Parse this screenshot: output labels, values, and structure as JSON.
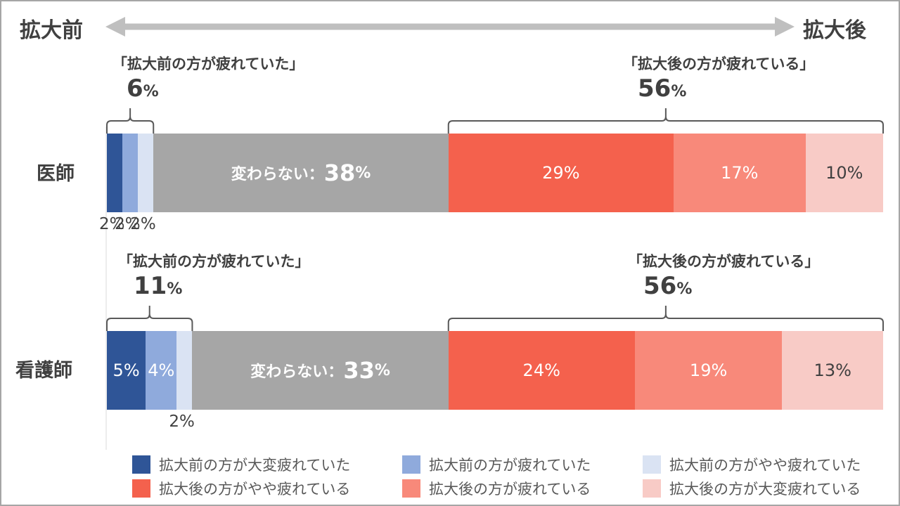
{
  "header": {
    "left_label": "拡大前",
    "right_label": "拡大後"
  },
  "colors": {
    "arrow": "#bfbfbf",
    "before_very": "#2f5597",
    "before_tired": "#8faadc",
    "before_slight": "#dae3f3",
    "no_change": "#a6a6a6",
    "after_slight": "#f4614d",
    "after_tired": "#f8897a",
    "after_very": "#f8cbc6",
    "bracket": "#595959",
    "axis": "#d9d9d9"
  },
  "chart_data": {
    "type": "bar",
    "orientation": "horizontal",
    "stacked": true,
    "categories": [
      "医師",
      "看護師"
    ],
    "series": [
      {
        "name": "拡大前の方が大変疲れていた",
        "values": [
          2,
          5
        ]
      },
      {
        "name": "拡大前の方が疲れていた",
        "values": [
          2,
          4
        ]
      },
      {
        "name": "拡大前の方がやや疲れていた",
        "values": [
          2,
          2
        ]
      },
      {
        "name": "変わらない",
        "values": [
          38,
          33
        ]
      },
      {
        "name": "拡大後の方がやや疲れている",
        "values": [
          29,
          24
        ]
      },
      {
        "name": "拡大後の方が疲れている",
        "values": [
          17,
          19
        ]
      },
      {
        "name": "拡大後の方が大変疲れている",
        "values": [
          10,
          13
        ]
      }
    ],
    "no_change_label": "変わらない：",
    "unit": "%",
    "groups": [
      {
        "before_title": "「拡大前の方が疲れていた」",
        "before_total": "6",
        "after_title": "「拡大後の方が疲れている」",
        "after_total": "56"
      },
      {
        "before_title": "「拡大前の方が疲れていた」",
        "before_total": "11",
        "after_title": "「拡大後の方が疲れている」",
        "after_total": "56"
      }
    ],
    "labels": {
      "row0": {
        "s0": "2%",
        "s1": "2%",
        "s2": "2%",
        "s3": "38",
        "s4": "29%",
        "s5": "17%",
        "s6": "10%"
      },
      "row1": {
        "s0": "5%",
        "s1": "4%",
        "s2": "2%",
        "s3": "33",
        "s4": "24%",
        "s5": "19%",
        "s6": "13%"
      }
    },
    "legend": [
      "拡大前の方が大変疲れていた",
      "拡大前の方が疲れていた",
      "拡大前の方がやや疲れていた",
      "拡大後の方がやや疲れている",
      "拡大後の方が疲れている",
      "拡大後の方が大変疲れている"
    ]
  }
}
